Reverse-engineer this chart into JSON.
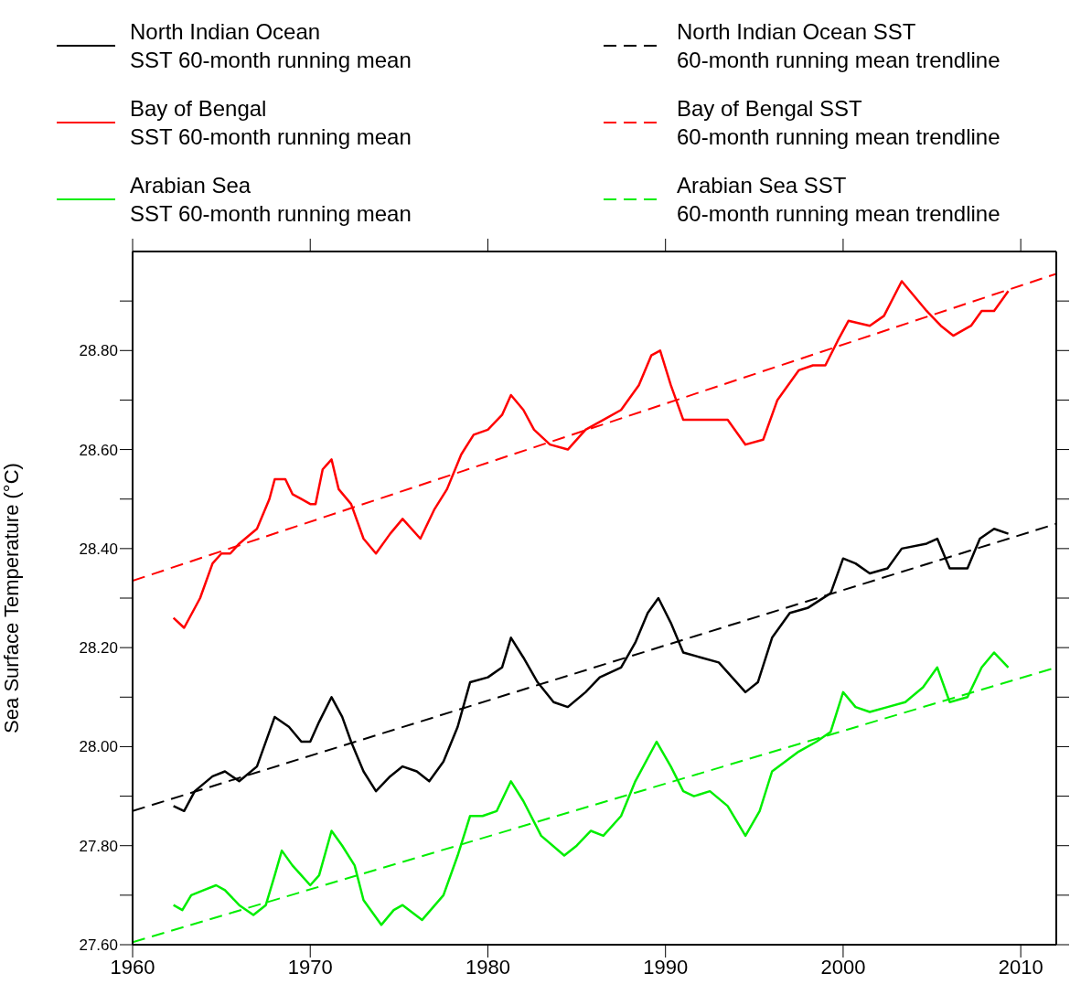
{
  "chart_data": {
    "type": "line",
    "ylabel": "Sea Surface Temperature (°C)",
    "legend": "top",
    "marker": "none",
    "xlim": [
      1960,
      2012
    ],
    "xticks": [
      1960,
      1970,
      1980,
      1990,
      2000,
      2010
    ],
    "ylim": [
      27.6,
      29.0
    ],
    "yticks": [
      {
        "value": 27.6,
        "label": "27.60"
      },
      {
        "value": 27.7,
        "label": null
      },
      {
        "value": 27.8,
        "label": "27.80"
      },
      {
        "value": 27.9,
        "label": null
      },
      {
        "value": 28.0,
        "label": "28.00"
      },
      {
        "value": 28.1,
        "label": null
      },
      {
        "value": 28.2,
        "label": "28.20"
      },
      {
        "value": 28.3,
        "label": null
      },
      {
        "value": 28.4,
        "label": "28.40"
      },
      {
        "value": 28.5,
        "label": null
      },
      {
        "value": 28.6,
        "label": "28.60"
      },
      {
        "value": 28.7,
        "label": null
      },
      {
        "value": 28.8,
        "label": "28.80"
      },
      {
        "value": 28.9,
        "label": null
      }
    ],
    "series": [
      {
        "name": "North Indian Ocean\nSST 60-month running mean",
        "color": "#000000",
        "line_style": "solid",
        "x": [
          1962.3,
          1962.9,
          1963.5,
          1964.5,
          1965.2,
          1966,
          1967,
          1968,
          1968.8,
          1969.5,
          1970,
          1970.5,
          1971.2,
          1971.8,
          1972.3,
          1973,
          1973.7,
          1974.5,
          1975.2,
          1976,
          1976.7,
          1977.5,
          1978.3,
          1979,
          1980,
          1980.8,
          1981.3,
          1982,
          1982.8,
          1983.7,
          1984.5,
          1985.5,
          1986.3,
          1987.5,
          1988.3,
          1989,
          1989.6,
          1990.3,
          1991,
          1992,
          1993,
          1994.5,
          1995.2,
          1996,
          1997,
          1998,
          1999.3,
          2000,
          2000.7,
          2001.5,
          2002.5,
          2003.3,
          2004.7,
          2005.3,
          2006,
          2007,
          2007.7,
          2008.5,
          2009.3
        ],
        "values": [
          27.88,
          27.87,
          27.91,
          27.94,
          27.95,
          27.93,
          27.96,
          28.06,
          28.04,
          28.01,
          28.01,
          28.05,
          28.1,
          28.06,
          28.01,
          27.95,
          27.91,
          27.94,
          27.96,
          27.95,
          27.93,
          27.97,
          28.04,
          28.13,
          28.14,
          28.16,
          28.22,
          28.18,
          28.13,
          28.09,
          28.08,
          28.11,
          28.14,
          28.16,
          28.21,
          28.27,
          28.3,
          28.25,
          28.19,
          28.18,
          28.17,
          28.11,
          28.13,
          28.22,
          28.27,
          28.28,
          28.31,
          28.38,
          28.37,
          28.35,
          28.36,
          28.4,
          28.41,
          28.42,
          28.36,
          28.36,
          28.42,
          28.44,
          28.43
        ]
      },
      {
        "name": "Bay of Bengal\nSST 60-month running mean",
        "color": "#ff0000",
        "line_style": "solid",
        "x": [
          1962.3,
          1962.9,
          1963.8,
          1964.5,
          1965,
          1965.5,
          1966,
          1967,
          1967.7,
          1968,
          1968.6,
          1969,
          1969.5,
          1970,
          1970.3,
          1970.7,
          1971.2,
          1971.6,
          1972.3,
          1973,
          1973.7,
          1974.5,
          1975.2,
          1976.2,
          1977,
          1977.7,
          1978.5,
          1979.2,
          1980,
          1980.8,
          1981.3,
          1982,
          1982.6,
          1983.5,
          1984.5,
          1985.5,
          1986.5,
          1987.5,
          1988.5,
          1989.2,
          1989.7,
          1990.3,
          1991,
          1991.5,
          1992.5,
          1993.5,
          1994.5,
          1995.5,
          1996.3,
          1997.5,
          1998.3,
          1999,
          1999.7,
          2000.3,
          2001.5,
          2002.3,
          2003.3,
          2004,
          2004.7,
          2005.5,
          2006.2,
          2007.2,
          2007.8,
          2008.5,
          2009.3
        ],
        "values": [
          28.26,
          28.24,
          28.3,
          28.37,
          28.39,
          28.39,
          28.41,
          28.44,
          28.5,
          28.54,
          28.54,
          28.51,
          28.5,
          28.49,
          28.49,
          28.56,
          28.58,
          28.52,
          28.49,
          28.42,
          28.39,
          28.43,
          28.46,
          28.42,
          28.48,
          28.52,
          28.59,
          28.63,
          28.64,
          28.67,
          28.71,
          28.68,
          28.64,
          28.61,
          28.6,
          28.64,
          28.66,
          28.68,
          28.73,
          28.79,
          28.8,
          28.73,
          28.66,
          28.66,
          28.66,
          28.66,
          28.61,
          28.62,
          28.7,
          28.76,
          28.77,
          28.77,
          28.82,
          28.86,
          28.85,
          28.87,
          28.94,
          28.91,
          28.88,
          28.85,
          28.83,
          28.85,
          28.88,
          28.88,
          28.92
        ]
      },
      {
        "name": "Arabian Sea\nSST 60-month running mean",
        "color": "#00ee00",
        "line_style": "solid",
        "x": [
          1962.3,
          1962.8,
          1963.3,
          1964,
          1964.7,
          1965.2,
          1966,
          1966.8,
          1967.5,
          1968,
          1968.4,
          1969,
          1969.5,
          1970,
          1970.5,
          1971.2,
          1971.8,
          1972.5,
          1973,
          1974,
          1974.7,
          1975.2,
          1976.3,
          1977.5,
          1978.3,
          1979,
          1979.7,
          1980.5,
          1981.3,
          1982,
          1983,
          1984.3,
          1985,
          1985.8,
          1986.5,
          1987.5,
          1988.3,
          1989.5,
          1990.3,
          1991,
          1991.6,
          1992.5,
          1993.5,
          1994.5,
          1995.3,
          1996,
          1997.5,
          1998.5,
          1999.3,
          2000,
          2000.7,
          2001.5,
          2002.5,
          2003.5,
          2004.5,
          2005.3,
          2006,
          2007,
          2007.8,
          2008.5,
          2009.3
        ],
        "values": [
          27.68,
          27.67,
          27.7,
          27.71,
          27.72,
          27.71,
          27.68,
          27.66,
          27.68,
          27.74,
          27.79,
          27.76,
          27.74,
          27.72,
          27.74,
          27.83,
          27.8,
          27.76,
          27.69,
          27.64,
          27.67,
          27.68,
          27.65,
          27.7,
          27.78,
          27.86,
          27.86,
          27.87,
          27.93,
          27.89,
          27.82,
          27.78,
          27.8,
          27.83,
          27.82,
          27.86,
          27.93,
          28.01,
          27.96,
          27.91,
          27.9,
          27.91,
          27.88,
          27.82,
          27.87,
          27.95,
          27.99,
          28.01,
          28.03,
          28.11,
          28.08,
          28.07,
          28.08,
          28.09,
          28.12,
          28.16,
          28.09,
          28.1,
          28.16,
          28.19,
          28.16
        ]
      },
      {
        "name": "North Indian Ocean SST\n60-month running mean trendline",
        "color": "#000000",
        "line_style": "dashed",
        "x": [
          1960,
          2012
        ],
        "values": [
          27.87,
          28.45
        ]
      },
      {
        "name": "Bay of Bengal SST\n60-month running mean trendline",
        "color": "#ff0000",
        "line_style": "dashed",
        "x": [
          1960,
          2012
        ],
        "values": [
          28.335,
          28.955
        ]
      },
      {
        "name": "Arabian Sea SST\n60-month running mean trendline",
        "color": "#00ee00",
        "line_style": "dashed",
        "x": [
          1960,
          2012
        ],
        "values": [
          27.605,
          28.16
        ]
      }
    ]
  }
}
